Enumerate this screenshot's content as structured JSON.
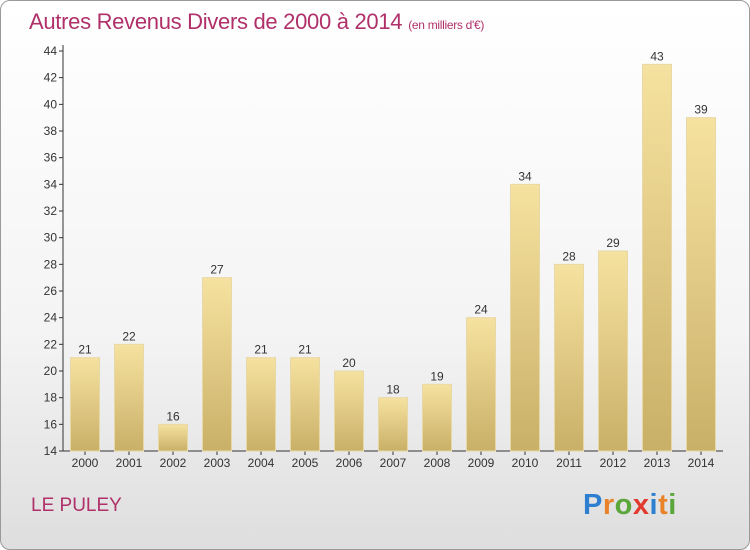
{
  "header": {
    "title": "Autres Revenus Divers de 2000 à 2014",
    "unit": "(en milliers d'€)"
  },
  "footer": {
    "place": "LE PULEY",
    "brand": "Proxiti",
    "brand_letters": [
      {
        "ch": "P",
        "color": "#2f7fd0"
      },
      {
        "ch": "r",
        "color": "#e8832a"
      },
      {
        "ch": "o",
        "color": "#5aa63a"
      },
      {
        "ch": "x",
        "color": "#e23a2f"
      },
      {
        "ch": "i",
        "color": "#2f7fd0"
      },
      {
        "ch": "t",
        "color": "#e8832a"
      },
      {
        "ch": "i",
        "color": "#5aa63a"
      }
    ]
  },
  "colors": {
    "title": "#b0306a",
    "bar_top": "#f6e2a0",
    "bar_bottom": "#c9b068",
    "axis": "#333333"
  },
  "chart_data": {
    "type": "bar",
    "title": "Autres Revenus Divers de 2000 à 2014",
    "subtitle": "(en milliers d'€)",
    "categories": [
      "2000",
      "2001",
      "2002",
      "2003",
      "2004",
      "2005",
      "2006",
      "2007",
      "2008",
      "2009",
      "2010",
      "2011",
      "2012",
      "2013",
      "2014"
    ],
    "values": [
      21,
      22,
      16,
      27,
      21,
      21,
      20,
      18,
      19,
      24,
      34,
      28,
      29,
      43,
      39
    ],
    "ylim": [
      14,
      44
    ],
    "yticks": [
      14,
      16,
      18,
      20,
      22,
      24,
      26,
      28,
      30,
      32,
      34,
      36,
      38,
      40,
      42,
      44
    ],
    "grid": false,
    "data_labels": true
  }
}
